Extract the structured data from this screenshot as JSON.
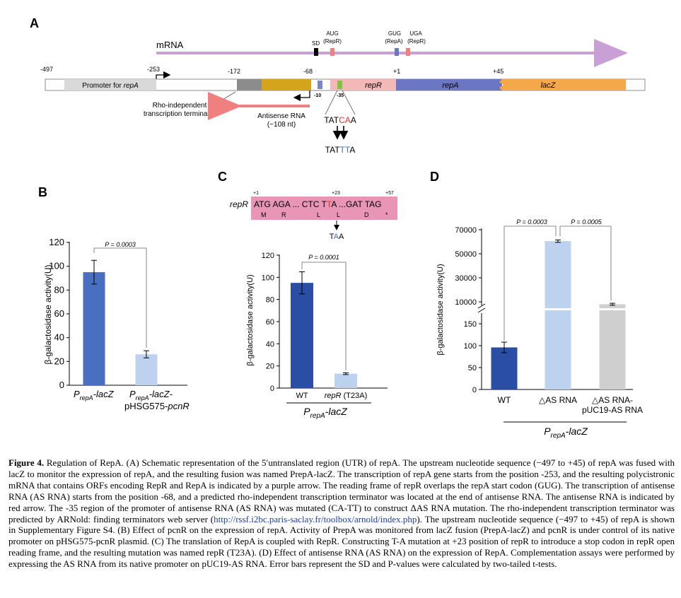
{
  "panels": {
    "A": {
      "letter": "A",
      "mrna_label": "mRNA",
      "sd_label": "SD",
      "aug_line1": "AUG",
      "aug_line2": "(RepR)",
      "gug_line1": "GUG",
      "gug_line2": "(RepA)",
      "uga_line1": "UGA",
      "uga_line2": "(RepR)",
      "pos_minus497": "-497",
      "pos_minus253": "-253",
      "pos_minus172": "-172",
      "pos_minus68": "-68",
      "pos_plus1": "+1",
      "pos_plus45": "+45",
      "promoter_prefix": "Promoter for ",
      "promoter_gene": "repA",
      "repr_label": "repR",
      "repa_label": "repA",
      "lacz_label": "lacZ",
      "minus10": "-10",
      "minus35": "-35",
      "terminator_line1": "Rho-independent",
      "terminator_line2": "transcription terminator",
      "antisense_line1": "Antisense RNA",
      "antisense_line2": "(~108 nt)",
      "seq_top": [
        "TAT",
        "CA",
        "A"
      ],
      "seq_bottom": [
        "TAT",
        "TT",
        "A"
      ],
      "colors": {
        "mrna": "#c9a0d6",
        "promoter": "#d9d9d9",
        "terminator": "#8c8c8c",
        "gold": "#d4a51c",
        "repr": "#f5b8b8",
        "repa": "#6b77c3",
        "lacz": "#f4a84a",
        "antisense": "#f08080",
        "mut_red": "#e8352b",
        "mut_blue": "#3f6fd1",
        "minus10_box": "#7b86c8",
        "minus35_box": "#7dc443"
      }
    },
    "B": {
      "letter": "B",
      "ylabel": "β-galactosidase activity(U)",
      "pvalue": "P = 0.0003",
      "ticks": [
        "0",
        "20",
        "40",
        "60",
        "80",
        "100",
        "120"
      ],
      "cat1_main": "P",
      "cat1_sub": "repA",
      "cat1_rest": "-lacZ",
      "cat2_main": "P",
      "cat2_sub": "repA",
      "cat2_rest": "-lacZ-",
      "cat2_line2": "pHSG575-",
      "cat2_line2_ital": "pcnR"
    },
    "C": {
      "letter": "C",
      "seq_gene": "repR",
      "seq_text_a": "ATG AGA ... CTC T",
      "seq_text_t": "T",
      "seq_text_b": "A ...GAT TAG",
      "seq_aa": [
        "M",
        "R",
        "L",
        "L",
        "D",
        "*"
      ],
      "pos_plus1": "+1",
      "pos_plus23": "+23",
      "pos_plus57": "+57",
      "mut_codon": [
        "T",
        "A",
        "A"
      ],
      "ylabel": "β-galactosidase activity(U)",
      "pvalue": "P = 0.0001",
      "ticks": [
        "0",
        "20",
        "40",
        "60",
        "80",
        "100",
        "120"
      ],
      "cat1": "WT",
      "cat2_ital": "repR",
      "cat2_rest": " (T23A)",
      "group_main": "P",
      "group_sub": "repA",
      "group_rest": "-lacZ",
      "colors": {
        "seq_box": "#e995b5"
      }
    },
    "D": {
      "letter": "D",
      "ylabel": "β-galactosidase activity(U)",
      "pvalue1": "P = 0.0003",
      "pvalue2": "P = 0.0005",
      "ticks_low": [
        "0",
        "50",
        "100",
        "150"
      ],
      "ticks_high": [
        "10000",
        "30000",
        "50000",
        "70000"
      ],
      "cat1": "WT",
      "cat2": "△AS RNA",
      "cat3_line1": "△AS RNA-",
      "cat3_line2": "pUC19-AS RNA",
      "group_main": "P",
      "group_sub": "repA",
      "group_rest": "-lacZ"
    }
  },
  "chart_data": [
    {
      "panel": "B",
      "type": "bar",
      "categories": [
        "PrepA-lacZ",
        "PrepA-lacZ-pHSG575-pcnR"
      ],
      "values": [
        95,
        26
      ],
      "errors": [
        10,
        3
      ],
      "ylabel": "β-galactosidase activity(U)",
      "ylim": [
        0,
        120
      ],
      "yticks": [
        0,
        20,
        40,
        60,
        80,
        100,
        120
      ],
      "annotation": "P = 0.0003",
      "colors": [
        "#4a6fc0",
        "#bcd2ef"
      ]
    },
    {
      "panel": "C",
      "type": "bar",
      "categories": [
        "WT",
        "repR (T23A)"
      ],
      "values": [
        95,
        13
      ],
      "errors": [
        10,
        0.8
      ],
      "ylabel": "β-galactosidase activity(U)",
      "ylim": [
        0,
        120
      ],
      "yticks": [
        0,
        20,
        40,
        60,
        80,
        100,
        120
      ],
      "annotation": "P = 0.0001",
      "group_label": "PrepA-lacZ",
      "colors": [
        "#2a4ea3",
        "#bcd2ef"
      ]
    },
    {
      "panel": "D",
      "type": "bar",
      "categories": [
        "WT",
        "△AS RNA",
        "△AS RNA-pUC19-AS RNA"
      ],
      "values": [
        96,
        60500,
        8000
      ],
      "errors": [
        12,
        1000,
        800
      ],
      "ylabel": "β-galactosidase activity(U)",
      "broken_axis": {
        "lower": [
          0,
          150
        ],
        "upper": [
          10000,
          70000
        ]
      },
      "yticks": [
        0,
        50,
        100,
        150,
        10000,
        30000,
        50000,
        70000
      ],
      "annotations": [
        "P = 0.0003",
        "P = 0.0005"
      ],
      "group_label": "PrepA-lacZ",
      "colors": [
        "#2a4ea3",
        "#bcd2ef",
        "#cfcfcf"
      ]
    }
  ],
  "caption": {
    "title": "Figure 4.",
    "title_text": " Regulation of RepA. ",
    "text": "(A) Schematic representation of the 5′untranslated region (UTR) of repA. The upstream nucleotide sequence (−497 to +45) of repA was fused with lacZ to monitor the expression of repA, and the resulting fusion was named PrepA-lacZ. The transcription of repA gene starts from the position -253, and the resulting polycistronic mRNA that contains ORFs encoding RepR and RepA is indicated by a purple arrow. The reading frame of repR overlaps the repA start codon (GUG). The transcription of antisense RNA (AS RNA) starts from the position -68, and a predicted rho-independent transcription terminator was located at the end of antisense RNA. The antisense RNA is indicated by red arrow. The -35 region of the promoter of antisense RNA (AS RNA) was mutated (CA-TT) to construct ΔAS RNA mutation. The rho-independent transcription terminator was predicted by ARNold: finding terminators web server (",
    "link": "http://rssf.i2bc.paris-saclay.fr/toolbox/arnold/index.php",
    "text2": "). The upstream nucleotide sequence (−497 to +45) of repA is shown in Supplementary Figure S4. (B) Effect of pcnR on the expression of repA. Activity of PrepA was monitored from lacZ fusion (PrepA-lacZ) and pcnR is under control of its native promoter on pHSG575-pcnR plasmid. (C) The translation of RepA is coupled with RepR. Constructing T-A mutation at +23 position of repR to introduce a stop codon in repR open reading frame, and the resulting mutation was named repR (T23A). (D) Effect of antisense RNA (AS RNA) on the expression of RepA. Complementation assays were performed by expressing the AS RNA from its native promoter on pUC19-AS RNA. Error bars represent the SD and P-values were calculated by two-tailed t-tests."
  }
}
